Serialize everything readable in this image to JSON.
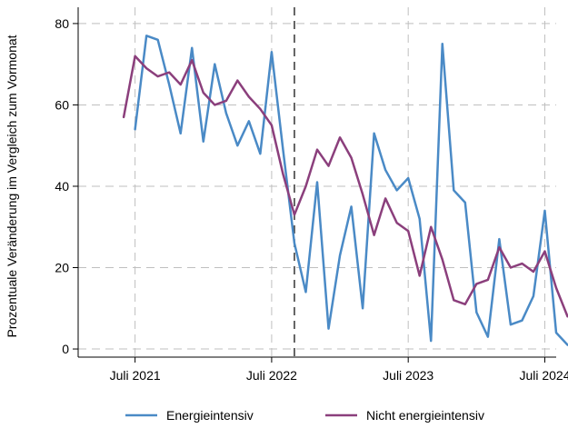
{
  "chart_data": {
    "type": "line",
    "title": "",
    "xlabel": "",
    "ylabel": "Prozentuale Veränderung im Vergleich zum Vormonat",
    "ylim": [
      -2,
      84
    ],
    "xlim": [
      "2021-02",
      "2024-08"
    ],
    "y_ticks": [
      0,
      20,
      40,
      60,
      80
    ],
    "x_ticks": [
      {
        "date": "2021-07",
        "label": "Juli 2021"
      },
      {
        "date": "2022-07",
        "label": "Juli 2022"
      },
      {
        "date": "2023-07",
        "label": "Juli 2023"
      },
      {
        "date": "2024-07",
        "label": "Juli 2024"
      }
    ],
    "grid": true,
    "grid_color": "#bfbfbf",
    "reference_line": {
      "date": "2022-09",
      "style": "dashed",
      "color": "#333333"
    },
    "legend_position": "bottom",
    "series": [
      {
        "name": "Energieintensiv",
        "color": "#4a8ac6",
        "points": [
          [
            "2021-07",
            54
          ],
          [
            "2021-08",
            77
          ],
          [
            "2021-09",
            76
          ],
          [
            "2021-10",
            65
          ],
          [
            "2021-11",
            53
          ],
          [
            "2021-12",
            74
          ],
          [
            "2022-01",
            51
          ],
          [
            "2022-02",
            70
          ],
          [
            "2022-03",
            58
          ],
          [
            "2022-04",
            50
          ],
          [
            "2022-05",
            56
          ],
          [
            "2022-06",
            48
          ],
          [
            "2022-07",
            73
          ],
          [
            "2022-08",
            49
          ],
          [
            "2022-09",
            26
          ],
          [
            "2022-10",
            14
          ],
          [
            "2022-11",
            41
          ],
          [
            "2022-12",
            5
          ],
          [
            "2023-01",
            23
          ],
          [
            "2023-02",
            35
          ],
          [
            "2023-03",
            10
          ],
          [
            "2023-04",
            53
          ],
          [
            "2023-05",
            44
          ],
          [
            "2023-06",
            39
          ],
          [
            "2023-07",
            42
          ],
          [
            "2023-08",
            32
          ],
          [
            "2023-09",
            2
          ],
          [
            "2023-10",
            75
          ],
          [
            "2023-11",
            39
          ],
          [
            "2023-12",
            36
          ],
          [
            "2024-01",
            9
          ],
          [
            "2024-02",
            3
          ],
          [
            "2024-03",
            27
          ],
          [
            "2024-04",
            6
          ],
          [
            "2024-05",
            7
          ],
          [
            "2024-06",
            13
          ],
          [
            "2024-07",
            34
          ],
          [
            "2024-08",
            4
          ],
          [
            "2024-09",
            1
          ]
        ]
      },
      {
        "name": "Nicht energieintensiv",
        "color": "#8b3f7c",
        "points": [
          [
            "2021-06",
            57
          ],
          [
            "2021-07",
            72
          ],
          [
            "2021-08",
            69
          ],
          [
            "2021-09",
            67
          ],
          [
            "2021-10",
            68
          ],
          [
            "2021-11",
            65
          ],
          [
            "2021-12",
            71
          ],
          [
            "2022-01",
            63
          ],
          [
            "2022-02",
            60
          ],
          [
            "2022-03",
            61
          ],
          [
            "2022-04",
            66
          ],
          [
            "2022-05",
            62
          ],
          [
            "2022-06",
            59
          ],
          [
            "2022-07",
            55
          ],
          [
            "2022-08",
            43
          ],
          [
            "2022-09",
            33
          ],
          [
            "2022-10",
            40
          ],
          [
            "2022-11",
            49
          ],
          [
            "2022-12",
            45
          ],
          [
            "2023-01",
            52
          ],
          [
            "2023-02",
            47
          ],
          [
            "2023-03",
            38
          ],
          [
            "2023-04",
            28
          ],
          [
            "2023-05",
            37
          ],
          [
            "2023-06",
            31
          ],
          [
            "2023-07",
            29
          ],
          [
            "2023-08",
            18
          ],
          [
            "2023-09",
            30
          ],
          [
            "2023-10",
            22
          ],
          [
            "2023-11",
            12
          ],
          [
            "2023-12",
            11
          ],
          [
            "2024-01",
            16
          ],
          [
            "2024-02",
            17
          ],
          [
            "2024-03",
            25
          ],
          [
            "2024-04",
            20
          ],
          [
            "2024-05",
            21
          ],
          [
            "2024-06",
            19
          ],
          [
            "2024-07",
            24
          ],
          [
            "2024-08",
            15
          ],
          [
            "2024-09",
            8
          ]
        ]
      }
    ]
  }
}
